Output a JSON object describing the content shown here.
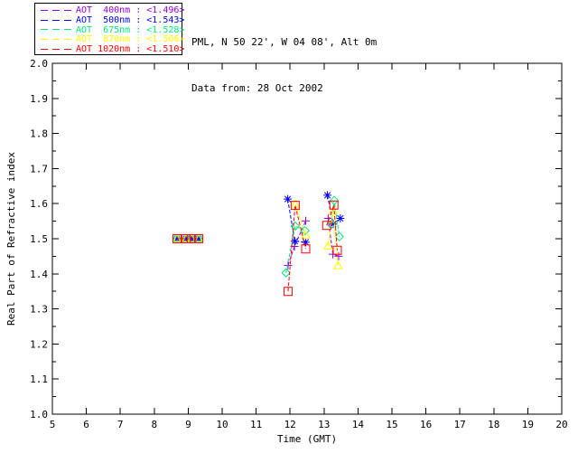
{
  "header": {
    "line1": "PML, N 50 22', W 04 08', Alt 0m",
    "line2": "Data from: 28 Oct 2002"
  },
  "legend": {
    "position": "top-left",
    "entries": [
      {
        "label": "AOT  400nm : <1.496>",
        "color": "#9400d3",
        "line_style": "dashed"
      },
      {
        "label": "AOT  500nm : <1.543>",
        "color": "#0000ff",
        "line_style": "dashed"
      },
      {
        "label": "AOT  675nm : <1.528>",
        "color": "#00e87e",
        "line_style": "dashed"
      },
      {
        "label": "AOT  870nm : <1.506>",
        "color": "#ffff00",
        "line_style": "dashed"
      },
      {
        "label": "AOT 1020nm : <1.510>",
        "color": "#ff0000",
        "line_style": "dashed"
      }
    ]
  },
  "chart_data": {
    "type": "line",
    "title": "",
    "xlabel": "Time (GMT)",
    "ylabel": "Real Part of Refractive index",
    "xlim": [
      5,
      20
    ],
    "ylim": [
      1.0,
      2.0
    ],
    "xticks": [
      5,
      6,
      7,
      8,
      9,
      10,
      11,
      12,
      13,
      14,
      15,
      16,
      17,
      18,
      19,
      20
    ],
    "yticks": [
      1.0,
      1.1,
      1.2,
      1.3,
      1.4,
      1.5,
      1.6,
      1.7,
      1.8,
      1.9,
      2.0
    ],
    "ytick_labels": [
      "1.0",
      "1.1",
      "1.2",
      "1.3",
      "1.4",
      "1.5",
      "1.6",
      "1.7",
      "1.8",
      "1.9",
      "2.0"
    ],
    "y_minor_step": 0.05,
    "grid": false,
    "frame_color": "#000000",
    "series": [
      {
        "name": "AOT 400nm",
        "mean_value": 1.496,
        "color": "#9400d3",
        "marker": "plus",
        "segments": [
          [
            [
              8.67,
              1.5
            ],
            [
              8.94,
              1.5
            ],
            [
              9.1,
              1.5
            ],
            [
              9.31,
              1.5
            ]
          ],
          [
            [
              11.94,
              1.424
            ],
            [
              12.13,
              1.478
            ],
            [
              12.46,
              1.551
            ]
          ],
          [
            [
              13.12,
              1.558
            ],
            [
              13.26,
              1.456
            ],
            [
              13.43,
              1.45
            ]
          ]
        ]
      },
      {
        "name": "AOT 500nm",
        "mean_value": 1.543,
        "color": "#0000ff",
        "marker": "asterisk",
        "segments": [
          [
            [
              8.67,
              1.5
            ],
            [
              8.94,
              1.5
            ],
            [
              9.1,
              1.5
            ],
            [
              9.31,
              1.5
            ]
          ],
          [
            [
              11.93,
              1.613
            ],
            [
              12.14,
              1.493
            ],
            [
              12.46,
              1.49
            ]
          ],
          [
            [
              13.1,
              1.624
            ],
            [
              13.27,
              1.542
            ],
            [
              13.48,
              1.558
            ]
          ]
        ]
      },
      {
        "name": "AOT 675nm",
        "mean_value": 1.528,
        "color": "#00e87e",
        "marker": "diamond",
        "segments": [
          [
            [
              8.67,
              1.5
            ],
            [
              8.94,
              1.5
            ],
            [
              9.1,
              1.5
            ],
            [
              9.31,
              1.5
            ]
          ],
          [
            [
              11.88,
              1.403
            ],
            [
              12.15,
              1.536
            ],
            [
              12.44,
              1.523
            ]
          ],
          [
            [
              13.21,
              1.541
            ],
            [
              13.3,
              1.609
            ],
            [
              13.45,
              1.506
            ]
          ]
        ]
      },
      {
        "name": "AOT 870nm",
        "mean_value": 1.506,
        "color": "#ffff00",
        "marker": "triangle",
        "segments": [
          [
            [
              8.67,
              1.5
            ],
            [
              8.94,
              1.5
            ],
            [
              9.1,
              1.5
            ],
            [
              9.31,
              1.5
            ]
          ],
          [
            [
              12.15,
              1.598
            ],
            [
              12.46,
              1.51
            ]
          ],
          [
            [
              13.12,
              1.48
            ],
            [
              13.27,
              1.58
            ],
            [
              13.41,
              1.424
            ]
          ]
        ]
      },
      {
        "name": "AOT 1020nm",
        "mean_value": 1.51,
        "color": "#ff0000",
        "marker": "square",
        "segments": [
          [
            [
              8.67,
              1.5
            ],
            [
              8.94,
              1.5
            ],
            [
              9.1,
              1.5
            ],
            [
              9.31,
              1.5
            ]
          ],
          [
            [
              11.94,
              1.35
            ],
            [
              12.15,
              1.595
            ],
            [
              12.46,
              1.471
            ]
          ],
          [
            [
              13.08,
              1.538
            ],
            [
              13.29,
              1.596
            ],
            [
              13.39,
              1.467
            ]
          ]
        ]
      }
    ]
  }
}
